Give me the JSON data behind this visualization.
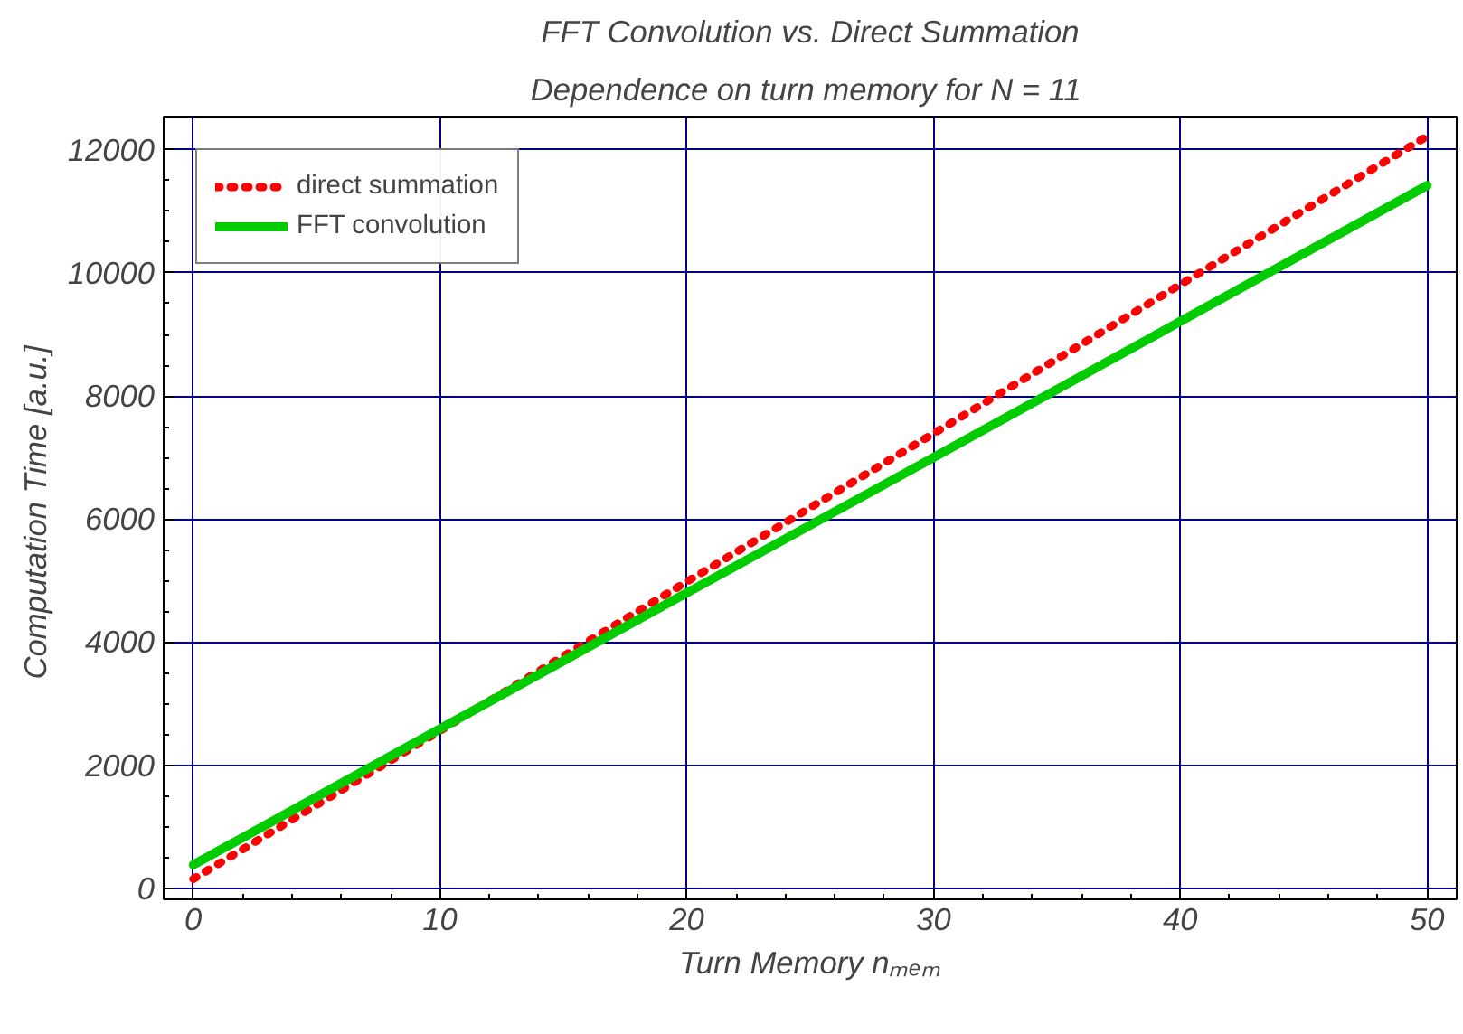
{
  "chart_data": {
    "type": "line",
    "title": "FFT Convolution vs. Direct Summation",
    "subtitle": "Dependence on turn memory for N =  11",
    "xlabel": "Turn Memory nₘₑₘ",
    "ylabel": "Computation Time  [a.u.]",
    "x": [
      0,
      10,
      20,
      30,
      40,
      50
    ],
    "series": [
      {
        "name": "direct summation",
        "color": "#ff0000",
        "line_style": "dotted",
        "values": [
          150,
          2560,
          4980,
          7390,
          9810,
          12220
        ]
      },
      {
        "name": "FFT convolution",
        "color": "#00cc00",
        "line_style": "solid",
        "values": [
          380,
          2590,
          4800,
          7000,
          9210,
          11420
        ]
      }
    ],
    "xlim": [
      -1.2,
      51.2
    ],
    "ylim": [
      -180,
      12540
    ],
    "xticks": [
      0,
      10,
      20,
      30,
      40,
      50
    ],
    "yticks": [
      0,
      2000,
      4000,
      6000,
      8000,
      10000,
      12000
    ],
    "grid": true,
    "legend": "top left",
    "marker": "none"
  }
}
